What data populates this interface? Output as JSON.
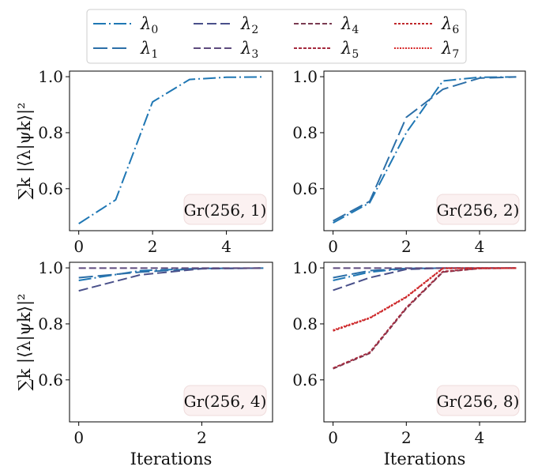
{
  "colors": {
    "lambda_0": "#1f77b4",
    "lambda_1": "#2c6fa8",
    "lambda_2": "#49508a",
    "lambda_3": "#5d4a7d",
    "lambda_4": "#7a3b52",
    "lambda_5": "#a52a3e",
    "lambda_6": "#c0282c",
    "lambda_7": "#d62728",
    "box_fill": "#fbf1f1",
    "box_edge": "#efdcdc"
  },
  "legend": {
    "entries": [
      {
        "key": "lambda_0",
        "symbol": "λ",
        "sub": "0",
        "dash": "16 4 2 4"
      },
      {
        "key": "lambda_1",
        "symbol": "λ",
        "sub": "1",
        "dash": "18 6"
      },
      {
        "key": "lambda_2",
        "symbol": "λ",
        "sub": "2",
        "dash": "12 5"
      },
      {
        "key": "lambda_3",
        "symbol": "λ",
        "sub": "3",
        "dash": "9 4"
      },
      {
        "key": "lambda_4",
        "symbol": "λ",
        "sub": "4",
        "dash": "6 3"
      },
      {
        "key": "lambda_5",
        "symbol": "λ",
        "sub": "5",
        "dash": "4 2"
      },
      {
        "key": "lambda_6",
        "symbol": "λ",
        "sub": "6",
        "dash": "3 2"
      },
      {
        "key": "lambda_7",
        "symbol": "λ",
        "sub": "7",
        "dash": "2 1.5"
      }
    ]
  },
  "chart_data": [
    {
      "type": "line",
      "label": "Gr(256, 1)",
      "xlabel": "",
      "ylabel": "∑k |⟨λ|ψk⟩|²",
      "xlim": [
        -0.25,
        5.25
      ],
      "ylim": [
        0.45,
        1.02
      ],
      "xticks": [
        0,
        2,
        4
      ],
      "yticks": [
        0.6,
        0.8,
        1.0
      ],
      "ytick_labels": [
        "0.6",
        "0.8",
        "1.0"
      ],
      "series": [
        {
          "key": "lambda_0",
          "x": [
            0,
            1,
            2,
            3,
            4,
            5
          ],
          "values": [
            0.475,
            0.56,
            0.91,
            0.99,
            0.998,
            0.999
          ]
        }
      ]
    },
    {
      "type": "line",
      "label": "Gr(256, 2)",
      "xlabel": "",
      "ylabel": "",
      "xlim": [
        -0.25,
        5.25
      ],
      "ylim": [
        0.45,
        1.02
      ],
      "xticks": [
        0,
        2,
        4
      ],
      "yticks": [
        0.6,
        0.8,
        1.0
      ],
      "ytick_labels": [
        "0.6",
        "0.8",
        "1.0"
      ],
      "series": [
        {
          "key": "lambda_0",
          "x": [
            0,
            1,
            2,
            3,
            4,
            5
          ],
          "values": [
            0.478,
            0.55,
            0.8,
            0.985,
            0.998,
            0.999
          ]
        },
        {
          "key": "lambda_1",
          "x": [
            0,
            1,
            2,
            3,
            4,
            5
          ],
          "values": [
            0.485,
            0.555,
            0.855,
            0.955,
            0.995,
            0.999
          ]
        }
      ]
    },
    {
      "type": "line",
      "label": "Gr(256, 4)",
      "xlabel": "Iterations",
      "ylabel": "∑k |⟨λ|ψk⟩|²",
      "xlim": [
        -0.15,
        3.15
      ],
      "ylim": [
        0.45,
        1.02
      ],
      "xticks": [
        0,
        2
      ],
      "yticks": [
        0.6,
        0.8,
        1.0
      ],
      "ytick_labels": [
        "0.6",
        "0.8",
        "1.0"
      ],
      "series": [
        {
          "key": "lambda_0",
          "x": [
            0,
            1,
            2,
            3
          ],
          "values": [
            0.955,
            0.99,
            0.998,
            0.999
          ]
        },
        {
          "key": "lambda_1",
          "x": [
            0,
            1,
            2,
            3
          ],
          "values": [
            0.965,
            0.985,
            0.998,
            0.999
          ]
        },
        {
          "key": "lambda_2",
          "x": [
            0,
            1,
            2,
            3
          ],
          "values": [
            0.918,
            0.975,
            0.997,
            0.999
          ]
        },
        {
          "key": "lambda_3",
          "x": [
            0,
            1,
            2,
            3
          ],
          "values": [
            0.999,
            0.999,
            0.999,
            0.999
          ]
        }
      ]
    },
    {
      "type": "line",
      "label": "Gr(256, 8)",
      "xlabel": "Iterations",
      "ylabel": "",
      "xlim": [
        -0.25,
        5.25
      ],
      "ylim": [
        0.45,
        1.02
      ],
      "xticks": [
        0,
        2,
        4
      ],
      "yticks": [
        0.6,
        0.8,
        1.0
      ],
      "ytick_labels": [
        "0.6",
        "0.8",
        "1.0"
      ],
      "series": [
        {
          "key": "lambda_0",
          "x": [
            0,
            1,
            2,
            3,
            4,
            5
          ],
          "values": [
            0.955,
            0.985,
            0.998,
            0.999,
            0.999,
            0.999
          ]
        },
        {
          "key": "lambda_1",
          "x": [
            0,
            1,
            2,
            3,
            4,
            5
          ],
          "values": [
            0.965,
            0.99,
            0.998,
            0.999,
            0.999,
            0.999
          ]
        },
        {
          "key": "lambda_2",
          "x": [
            0,
            1,
            2,
            3,
            4,
            5
          ],
          "values": [
            0.92,
            0.965,
            0.995,
            0.999,
            0.999,
            0.999
          ]
        },
        {
          "key": "lambda_3",
          "x": [
            0,
            1,
            2,
            3,
            4,
            5
          ],
          "values": [
            0.999,
            0.999,
            0.999,
            0.999,
            0.999,
            0.999
          ]
        },
        {
          "key": "lambda_4",
          "x": [
            0,
            1,
            2,
            3,
            4,
            5
          ],
          "values": [
            0.64,
            0.695,
            0.855,
            0.985,
            0.998,
            0.999
          ]
        },
        {
          "key": "lambda_5",
          "x": [
            0,
            1,
            2,
            3,
            4,
            5
          ],
          "values": [
            0.642,
            0.698,
            0.858,
            0.987,
            0.998,
            0.999
          ]
        },
        {
          "key": "lambda_6",
          "x": [
            0,
            1,
            2,
            3,
            4,
            5
          ],
          "values": [
            0.775,
            0.82,
            0.895,
            0.998,
            0.999,
            0.999
          ]
        },
        {
          "key": "lambda_7",
          "x": [
            0,
            1,
            2,
            3,
            4,
            5
          ],
          "values": [
            0.778,
            0.822,
            0.897,
            0.999,
            0.999,
            0.999
          ]
        }
      ]
    }
  ]
}
